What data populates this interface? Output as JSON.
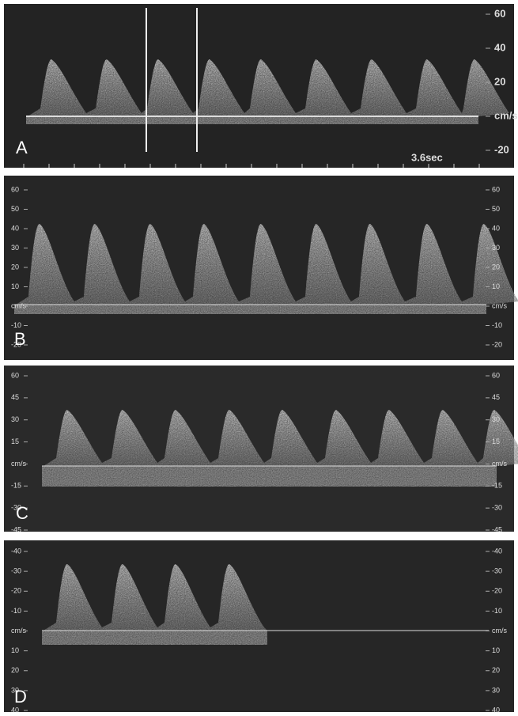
{
  "panels": [
    {
      "label": "A",
      "scale_labels": [
        "60",
        "40",
        "20",
        "cm/s",
        "-20"
      ],
      "note": "3.6sec"
    },
    {
      "label": "B",
      "scale_labels": [
        "60",
        "50",
        "40",
        "30",
        "20",
        "10",
        "cm/s",
        "-10",
        "-20"
      ]
    },
    {
      "label": "C",
      "scale_labels": [
        "60",
        "45",
        "30",
        "15",
        "cm/s",
        "-15",
        "-30",
        "-45"
      ]
    },
    {
      "label": "D",
      "scale_labels": [
        "-40",
        "-30",
        "-20",
        "-10",
        "cm/s",
        "10",
        "20",
        "30",
        "40"
      ]
    }
  ]
}
